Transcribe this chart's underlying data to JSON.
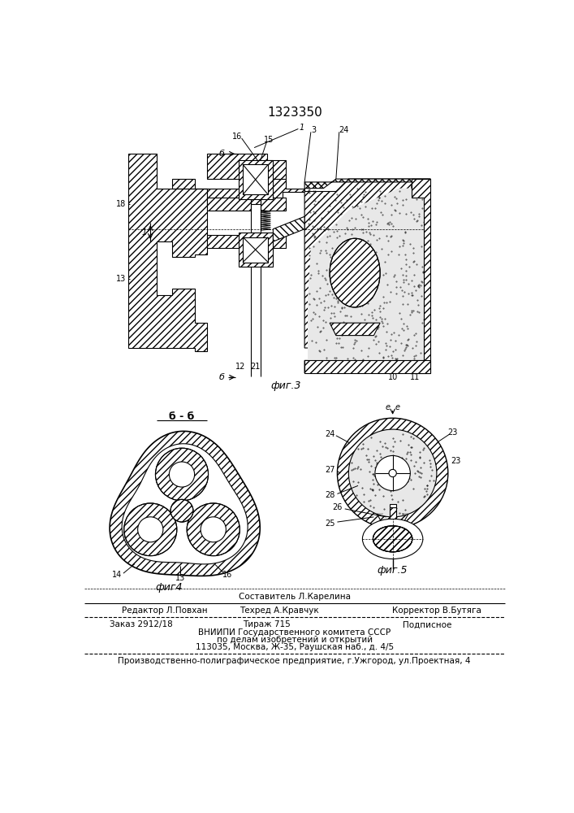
{
  "title": "1323350",
  "fig3_label": "фиг.3",
  "fig4_label": "фиг4",
  "fig5_label": "фиг.5",
  "section_bb": "б - б",
  "footer_top": "Составитель Л.Карелина",
  "footer_line1_left": "Редактор Л.Повхан",
  "footer_line1_mid": "Техред А.Кравчук",
  "footer_line1_right": "Корректор В.Бутяга",
  "footer_line2_left": "Заказ 2912/18",
  "footer_line2_mid": "Тираж 715",
  "footer_line2_right": "Подписное",
  "footer_line3": "ВНИИПИ Государственного комитета СССР",
  "footer_line4": "по делам изобретений и открытий",
  "footer_line5": "113035, Москва, Ж-35, Раушская наб., д. 4/5",
  "footer_bottom": "Производственно-полиграфическое предприятие, г.Ужгород, ул.Проектная, 4",
  "bg_color": "#ffffff"
}
